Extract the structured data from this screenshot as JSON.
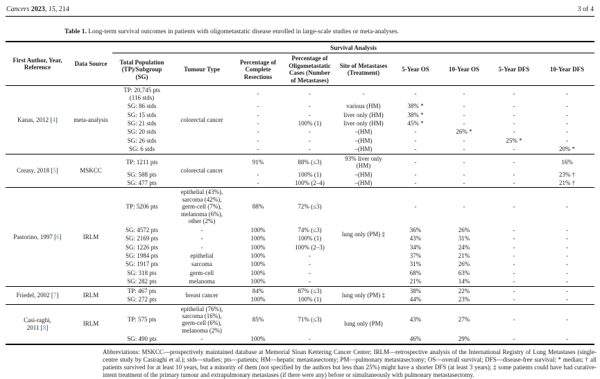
{
  "colors": {
    "reference_link": "#4697c8",
    "text": "#1a1a1a",
    "background": "#ffffff"
  },
  "page_header": {
    "citation_parts": [
      {
        "text": "Cancers",
        "style": "italic"
      },
      {
        "text": " ",
        "style": ""
      },
      {
        "text": "2023",
        "style": "bold"
      },
      {
        "text": ", ",
        "style": ""
      },
      {
        "text": "15",
        "style": "italic"
      },
      {
        "text": ", 214",
        "style": ""
      }
    ],
    "page_indicator": "3 of 4"
  },
  "caption": {
    "label": "Table 1.",
    "text": "Long-term survival outcomes in patients with oligometastatic disease enrolled in large-scale studies or meta-analyses."
  },
  "table": {
    "headers": {
      "author": "First Author, Year,\nReference",
      "source": "Data Source",
      "survival": "Survival Analysis",
      "population": "Total Population\n(TP)/Subgroup\n(SG)",
      "tumour": "Tumour Type",
      "resections": "Percentage of\nComplete\nResections",
      "oligo": "Percentage of\nOligometastatic\nCases (Number\nof Metastases)",
      "site": "Site of Metastases\n(Treatment)",
      "os5": "5-Year OS",
      "os10": "10-Year OS",
      "dfs5": "5-Year DFS",
      "dfs10": "10-Year DFS"
    },
    "column_keys": [
      "population",
      "tumour-type",
      "complete-resections",
      "oligometastatic-cases",
      "metastases-site",
      "os-5yr",
      "os-10yr",
      "dfs-5yr",
      "dfs-10yr"
    ],
    "studies": [
      {
        "author_lines": [
          "Kanas, 2012"
        ],
        "refnum": "4",
        "source": "meta-analysis",
        "rows": [
          [
            "TP: 20,745 pts\n(116 stds)",
            {
              "t": "colorectal cancer",
              "rs": 7
            },
            "-",
            "-",
            "-",
            "-",
            "-",
            "-",
            "-"
          ],
          [
            "SG: 86 stds",
            null,
            "-",
            "-",
            "various (HM)",
            "38% *",
            "-",
            "-",
            "-"
          ],
          [
            "SG: 15 stds",
            null,
            "-",
            "-",
            "liver only (HM)",
            "38% *",
            "-",
            "-",
            "-"
          ],
          [
            "SG: 21 stds",
            null,
            "-",
            "100% (1)",
            "liver only (HM)",
            "45% *",
            "-",
            "-",
            "-"
          ],
          [
            "SG: 20 stds",
            null,
            "-",
            "-",
            "–(HM)",
            "-",
            "26% *",
            "-",
            "-"
          ],
          [
            "SG: 26 stds",
            null,
            "-",
            "-",
            "–(HM)",
            "-",
            "-",
            "25% *",
            "-"
          ],
          [
            "SG: 6 stds",
            null,
            "-",
            "-",
            "–(HM)",
            "-",
            "-",
            "-",
            "20% *"
          ]
        ]
      },
      {
        "author_lines": [
          "Creasy, 2018"
        ],
        "refnum": "5",
        "source": "MSKCC",
        "rows": [
          [
            "TP: 1211 pts",
            {
              "t": "colorectal cancer",
              "rs": 3
            },
            "91%",
            "88% (≤3)",
            "93% liver only\n(HM)",
            "-",
            "-",
            "-",
            "16%"
          ],
          [
            "SG: 588 pts",
            null,
            "-",
            "100% (1)",
            "–(HM)",
            "-",
            "-",
            "-",
            "23% †"
          ],
          [
            "SG: 477 pts",
            null,
            "-",
            "100% (2–4)",
            "–(HM)",
            "-",
            "-",
            "-",
            "21% †"
          ]
        ]
      },
      {
        "author_lines": [
          "Pastorino, 1997"
        ],
        "refnum": "6",
        "source": "IRLM",
        "rows": [
          [
            "TP: 5206 pts",
            "epithelial (43%),\nsarcoma (42%),\ngerm-cell (7%),\nmelanoma (6%),\nother (2%)",
            "88%",
            "72% (≤3)",
            "",
            "-",
            "-",
            "-",
            "-"
          ],
          [
            "SG: 4572 pts",
            "-",
            "100%",
            "74% (≤3)",
            {
              "t": "lung only (PM) ‡",
              "rs": 2
            },
            "36%",
            "26%",
            "-",
            "-"
          ],
          [
            "SG: 2169 pts",
            "-",
            "100%",
            "100% (1)",
            null,
            "43%",
            "31%",
            "-",
            "-"
          ],
          [
            "SG: 1226 pts",
            "-",
            "100%",
            "100% (2–3)",
            "",
            "34%",
            "24%",
            "-",
            "-"
          ],
          [
            "SG: 1984 pts",
            "epithelial",
            "100%",
            "-",
            "",
            "37%",
            "21%",
            "-",
            "-"
          ],
          [
            "SG: 1917 pts",
            "sarcoma",
            "100%",
            "-",
            "",
            "31%",
            "26%",
            "-",
            "-"
          ],
          [
            "SG: 318 pts",
            "germ-cell",
            "100%",
            "-",
            "",
            "68%",
            "63%",
            "-",
            "-"
          ],
          [
            "SG: 282 pts",
            "melanoma",
            "100%",
            "-",
            "",
            "21%",
            "14%",
            "-",
            "-"
          ]
        ]
      },
      {
        "author_lines": [
          "Friedel, 2002"
        ],
        "refnum": "7",
        "source": "IRLM",
        "rows": [
          [
            "TP: 467 pts",
            {
              "t": "breast cancer",
              "rs": 2
            },
            "84%",
            "87% (≤3)",
            {
              "t": "lung only (PM) ‡",
              "rs": 2
            },
            "38%",
            "22%",
            "-",
            "-"
          ],
          [
            "SG: 272 pts",
            null,
            "100%",
            "100% (1)",
            null,
            "44%",
            "23%",
            "-",
            "-"
          ]
        ]
      },
      {
        "author_lines": [
          "Casi-raghi,",
          "2011"
        ],
        "refnum": "8",
        "source": "IRLM",
        "rows": [
          [
            "TP: 575 pts",
            "epithelial (76%),\nsarcoma (16%),\ngerm-cell (6%),\nmelanoma (2%)",
            "85%",
            "71% (≤3)",
            {
              "t": "lung only (PM)",
              "rs": 2
            },
            "43%",
            "27%",
            "-",
            "-"
          ],
          [
            "SG: 490 pts",
            "-",
            "100%",
            "-",
            null,
            "46%",
            "29%",
            "-",
            "-"
          ]
        ]
      }
    ]
  },
  "footnote": {
    "text": "Abbreviations: MSKCC—prospectively maintained database at Memorial Sloan Kettering Cancer Center; IRLM—retrospective analysis of the International Registry of Lung Metastases (single-centre study by Casiraghi et al.); stds—studies; pts—patients; HM—hepatic metastasectomy; PM—pulmonary metastasectomy; OS—overall survival; DFS—disease-free survival; * median; † all patients survived for at least 10 years, but a minority of them (not specified by the authors but less than 25%) might have a shorter DFS (at least 3 years); ‡ some patients could have had curative-intent treatment of the primary tumour and extrapulmonary metastases (if there were any) before or simultaneously with pulmonary metastasectomy."
  }
}
